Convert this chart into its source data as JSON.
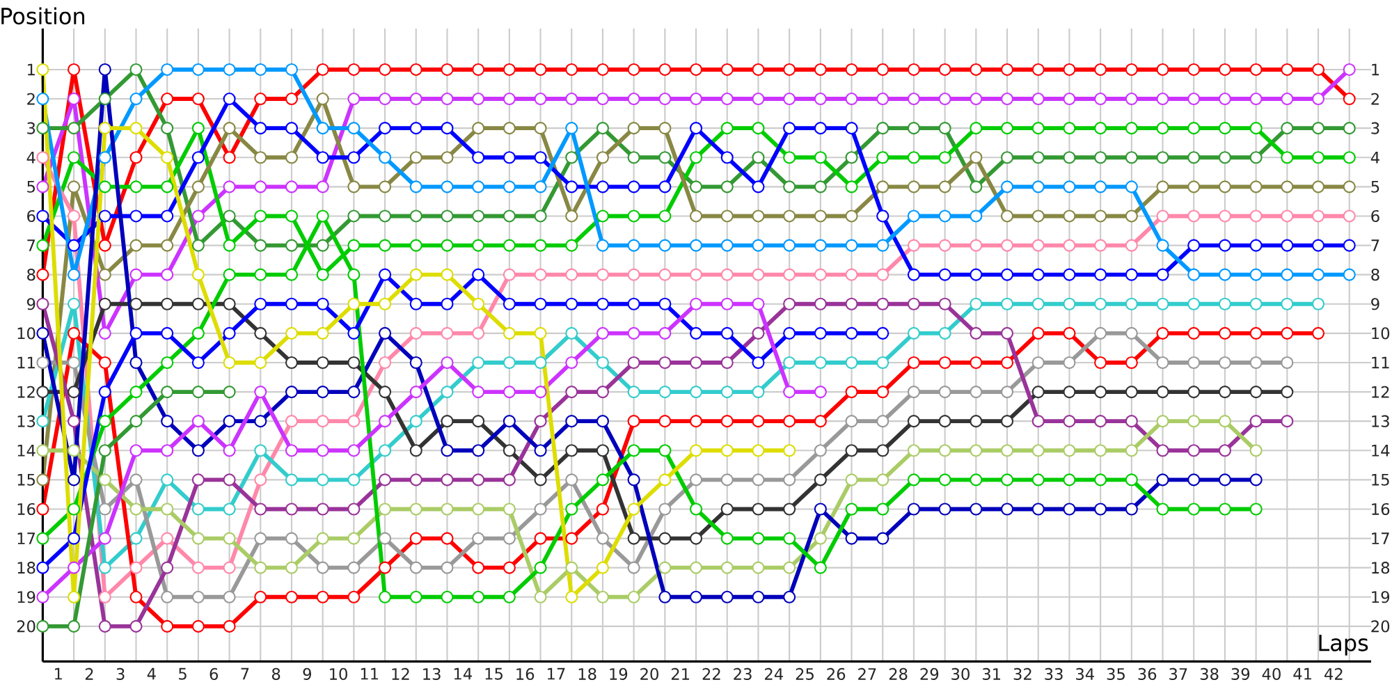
{
  "chart_data": {
    "type": "line",
    "xlabel": "Laps",
    "ylabel": "Position",
    "x": [
      0,
      1,
      2,
      3,
      4,
      5,
      6,
      7,
      8,
      9,
      10,
      11,
      12,
      13,
      14,
      15,
      16,
      17,
      18,
      19,
      20,
      21,
      22,
      23,
      24,
      25,
      26,
      27,
      28,
      29,
      30,
      31,
      32,
      33,
      34,
      35,
      36,
      37,
      38,
      39,
      40,
      41,
      42
    ],
    "xlim": [
      0,
      42.7
    ],
    "xticks": [
      {
        "value": 0.5,
        "label": "1"
      },
      {
        "value": 1.5,
        "label": "2"
      },
      {
        "value": 2.5,
        "label": "3"
      },
      {
        "value": 3.5,
        "label": "4"
      },
      {
        "value": 4.5,
        "label": "5"
      },
      {
        "value": 5.5,
        "label": "6"
      },
      {
        "value": 6.5,
        "label": "7"
      },
      {
        "value": 7.5,
        "label": "8"
      },
      {
        "value": 8.5,
        "label": "9"
      },
      {
        "value": 9.5,
        "label": "10"
      },
      {
        "value": 10.5,
        "label": "11"
      },
      {
        "value": 11.5,
        "label": "12"
      },
      {
        "value": 12.5,
        "label": "13"
      },
      {
        "value": 13.5,
        "label": "14"
      },
      {
        "value": 14.5,
        "label": "15"
      },
      {
        "value": 15.5,
        "label": "16"
      },
      {
        "value": 16.5,
        "label": "17"
      },
      {
        "value": 17.5,
        "label": "18"
      },
      {
        "value": 18.5,
        "label": "19"
      },
      {
        "value": 19.5,
        "label": "20"
      },
      {
        "value": 20.5,
        "label": "21"
      },
      {
        "value": 21.5,
        "label": "22"
      },
      {
        "value": 22.5,
        "label": "23"
      },
      {
        "value": 23.5,
        "label": "24"
      },
      {
        "value": 24.5,
        "label": "25"
      },
      {
        "value": 25.5,
        "label": "26"
      },
      {
        "value": 26.5,
        "label": "27"
      },
      {
        "value": 27.5,
        "label": "28"
      },
      {
        "value": 28.5,
        "label": "29"
      },
      {
        "value": 29.5,
        "label": "30"
      },
      {
        "value": 30.5,
        "label": "31"
      },
      {
        "value": 31.5,
        "label": "32"
      },
      {
        "value": 32.5,
        "label": "33"
      },
      {
        "value": 33.5,
        "label": "34"
      },
      {
        "value": 34.5,
        "label": "35"
      },
      {
        "value": 35.5,
        "label": "36"
      },
      {
        "value": 36.5,
        "label": "37"
      },
      {
        "value": 37.5,
        "label": "38"
      },
      {
        "value": 38.5,
        "label": "39"
      },
      {
        "value": 39.5,
        "label": "40"
      },
      {
        "value": 40.5,
        "label": "41"
      },
      {
        "value": 41.5,
        "label": "42"
      }
    ],
    "ylim": [
      21.2,
      -0.4
    ],
    "yticks": [
      1,
      2,
      3,
      4,
      5,
      6,
      7,
      8,
      9,
      10,
      11,
      12,
      13,
      14,
      15,
      16,
      17,
      18,
      19,
      20
    ],
    "y2lim": [
      21.2,
      -0.4
    ],
    "y2ticks": [
      1,
      2,
      3,
      4,
      5,
      6,
      7,
      8,
      9,
      10,
      11,
      12,
      13,
      14,
      15,
      16,
      17,
      18,
      19,
      20
    ],
    "grid": true,
    "marker": "circle",
    "series": [
      {
        "color": "#ff0000",
        "values": [
          8,
          1,
          7,
          4,
          2,
          2,
          4,
          2,
          2,
          1,
          1,
          1,
          1,
          1,
          1,
          1,
          1,
          1,
          1,
          1,
          1,
          1,
          1,
          1,
          1,
          1,
          1,
          1,
          1,
          1,
          1,
          1,
          1,
          1,
          1,
          1,
          1,
          1,
          1,
          1,
          1,
          1,
          2
        ]
      },
      {
        "color": "#cc33ff",
        "values": [
          5,
          2,
          10,
          8,
          8,
          6,
          5,
          5,
          5,
          5,
          2,
          2,
          2,
          2,
          2,
          2,
          2,
          2,
          2,
          2,
          2,
          2,
          2,
          2,
          2,
          2,
          2,
          2,
          2,
          2,
          2,
          2,
          2,
          2,
          2,
          2,
          2,
          2,
          2,
          2,
          2,
          2,
          1
        ]
      },
      {
        "color": "#339933",
        "values": [
          3,
          3,
          2,
          1,
          3,
          7,
          6,
          7,
          7,
          7,
          6,
          6,
          6,
          6,
          6,
          6,
          6,
          4,
          3,
          4,
          4,
          5,
          5,
          4,
          5,
          5,
          4,
          3,
          3,
          3,
          5,
          4,
          4,
          4,
          4,
          4,
          4,
          4,
          4,
          4,
          3,
          3,
          3
        ]
      },
      {
        "color": "#00cc00",
        "values": [
          7,
          4,
          5,
          5,
          5,
          3,
          7,
          6,
          6,
          8,
          7,
          7,
          7,
          7,
          7,
          7,
          7,
          7,
          6,
          6,
          6,
          4,
          3,
          3,
          4,
          4,
          5,
          4,
          4,
          4,
          3,
          3,
          3,
          3,
          3,
          3,
          3,
          3,
          3,
          3,
          4,
          4,
          4
        ]
      },
      {
        "color": "#888844",
        "values": [
          15,
          5,
          8,
          7,
          7,
          5,
          3,
          4,
          4,
          2,
          5,
          5,
          4,
          4,
          3,
          3,
          3,
          6,
          4,
          3,
          3,
          6,
          6,
          6,
          6,
          6,
          6,
          5,
          5,
          5,
          4,
          6,
          6,
          6,
          6,
          6,
          5,
          5,
          5,
          5,
          5,
          5,
          5
        ]
      },
      {
        "color": "#ff88aa",
        "values": [
          4,
          6,
          19,
          18,
          17,
          18,
          18,
          15,
          13,
          13,
          13,
          11,
          10,
          10,
          10,
          8,
          8,
          8,
          8,
          8,
          8,
          8,
          8,
          8,
          8,
          8,
          8,
          8,
          7,
          7,
          7,
          7,
          7,
          7,
          7,
          7,
          6,
          6,
          6,
          6,
          6,
          6,
          6
        ]
      },
      {
        "color": "#0000ff",
        "values": [
          6,
          7,
          6,
          6,
          6,
          4,
          2,
          3,
          3,
          4,
          4,
          3,
          3,
          3,
          4,
          4,
          4,
          5,
          5,
          5,
          5,
          3,
          4,
          5,
          3,
          3,
          3,
          6,
          8,
          8,
          8,
          8,
          8,
          8,
          8,
          8,
          8,
          7,
          7,
          7,
          7,
          7,
          7
        ]
      },
      {
        "color": "#0099ff",
        "values": [
          2,
          8,
          4,
          2,
          1,
          1,
          1,
          1,
          1,
          3,
          3,
          4,
          5,
          5,
          5,
          5,
          5,
          3,
          7,
          7,
          7,
          7,
          7,
          7,
          7,
          7,
          7,
          7,
          6,
          6,
          6,
          5,
          5,
          5,
          5,
          5,
          7,
          8,
          8,
          8,
          8,
          8,
          8
        ]
      },
      {
        "color": "#33cccc",
        "values": [
          13,
          9,
          18,
          17,
          15,
          16,
          16,
          14,
          15,
          15,
          15,
          14,
          13,
          12,
          11,
          11,
          11,
          10,
          11,
          12,
          12,
          12,
          12,
          12,
          11,
          11,
          11,
          11,
          10,
          10,
          9,
          9,
          9,
          9,
          9,
          9,
          9,
          9,
          9,
          9,
          9,
          9,
          null
        ]
      },
      {
        "color": "#ff0000",
        "values": [
          16,
          10,
          11,
          19,
          20,
          20,
          20,
          19,
          19,
          19,
          19,
          18,
          17,
          17,
          18,
          18,
          17,
          17,
          16,
          13,
          13,
          13,
          13,
          13,
          13,
          13,
          12,
          12,
          11,
          11,
          11,
          11,
          10,
          10,
          11,
          11,
          10,
          10,
          10,
          10,
          10,
          10,
          null
        ]
      },
      {
        "color": "#999999",
        "values": [
          11,
          11,
          16,
          15,
          19,
          19,
          19,
          17,
          17,
          18,
          18,
          17,
          18,
          18,
          17,
          17,
          16,
          15,
          17,
          18,
          16,
          15,
          15,
          15,
          15,
          14,
          13,
          13,
          12,
          12,
          12,
          12,
          11,
          11,
          10,
          10,
          11,
          11,
          11,
          11,
          11,
          null,
          null
        ]
      },
      {
        "color": "#333333",
        "values": [
          12,
          12,
          9,
          9,
          9,
          9,
          9,
          10,
          11,
          11,
          11,
          12,
          14,
          13,
          13,
          14,
          15,
          14,
          14,
          17,
          17,
          17,
          16,
          16,
          16,
          15,
          14,
          14,
          13,
          13,
          13,
          13,
          12,
          12,
          12,
          12,
          12,
          12,
          12,
          12,
          12,
          null,
          null
        ]
      },
      {
        "color": "#993399",
        "values": [
          9,
          13,
          20,
          20,
          18,
          15,
          15,
          16,
          16,
          16,
          16,
          15,
          15,
          15,
          15,
          15,
          13,
          12,
          12,
          11,
          11,
          11,
          11,
          10,
          9,
          9,
          9,
          9,
          9,
          9,
          10,
          10,
          13,
          13,
          13,
          13,
          14,
          14,
          14,
          13,
          13,
          null,
          null
        ]
      },
      {
        "color": "#aacc66",
        "values": [
          14,
          14,
          15,
          16,
          16,
          17,
          17,
          18,
          18,
          17,
          17,
          16,
          16,
          16,
          16,
          16,
          19,
          18,
          19,
          19,
          18,
          18,
          18,
          18,
          18,
          17,
          15,
          15,
          14,
          14,
          14,
          14,
          14,
          14,
          14,
          14,
          13,
          13,
          13,
          14,
          null,
          null,
          null
        ]
      },
      {
        "color": "#0000bb",
        "values": [
          10,
          15,
          1,
          11,
          13,
          14,
          13,
          13,
          12,
          12,
          12,
          10,
          11,
          14,
          14,
          13,
          14,
          13,
          13,
          15,
          19,
          19,
          19,
          19,
          19,
          16,
          17,
          17,
          16,
          16,
          16,
          16,
          16,
          16,
          16,
          16,
          15,
          15,
          15,
          15,
          null,
          null,
          null
        ]
      },
      {
        "color": "#00cc00",
        "values": [
          17,
          16,
          13,
          12,
          11,
          10,
          8,
          8,
          8,
          6,
          8,
          19,
          19,
          19,
          19,
          19,
          18,
          16,
          15,
          14,
          14,
          16,
          17,
          17,
          17,
          18,
          16,
          16,
          15,
          15,
          15,
          15,
          15,
          15,
          15,
          15,
          16,
          16,
          16,
          16,
          null,
          null,
          null
        ]
      },
      {
        "color": "#0000ff",
        "values": [
          18,
          17,
          12,
          10,
          10,
          11,
          10,
          9,
          9,
          9,
          10,
          8,
          9,
          9,
          8,
          9,
          9,
          9,
          9,
          9,
          9,
          10,
          10,
          11,
          10,
          10,
          10,
          10,
          null,
          null,
          null,
          null,
          null,
          null,
          null,
          null,
          null,
          null,
          null,
          null,
          null,
          null,
          null
        ]
      },
      {
        "color": "#cc33ff",
        "values": [
          19,
          18,
          17,
          14,
          14,
          13,
          14,
          12,
          14,
          14,
          14,
          13,
          12,
          11,
          12,
          12,
          12,
          11,
          10,
          10,
          10,
          9,
          9,
          9,
          12,
          12,
          null,
          null,
          null,
          null,
          null,
          null,
          null,
          null,
          null,
          null,
          null,
          null,
          null,
          null,
          null,
          null,
          null
        ]
      },
      {
        "color": "#dddd00",
        "values": [
          1,
          19,
          3,
          3,
          4,
          8,
          11,
          11,
          10,
          10,
          9,
          9,
          8,
          8,
          9,
          10,
          10,
          19,
          18,
          16,
          15,
          14,
          14,
          14,
          14,
          null,
          null,
          null,
          null,
          null,
          null,
          null,
          null,
          null,
          null,
          null,
          null,
          null,
          null,
          null,
          null,
          null,
          null
        ]
      },
      {
        "color": "#339933",
        "values": [
          20,
          20,
          14,
          13,
          12,
          12,
          12,
          null,
          null,
          null,
          null,
          null,
          null,
          null,
          null,
          null,
          null,
          null,
          null,
          null,
          null,
          null,
          null,
          null,
          null,
          null,
          null,
          null,
          null,
          null,
          null,
          null,
          null,
          null,
          null,
          null,
          null,
          null,
          null,
          null,
          null,
          null,
          null
        ]
      }
    ]
  }
}
